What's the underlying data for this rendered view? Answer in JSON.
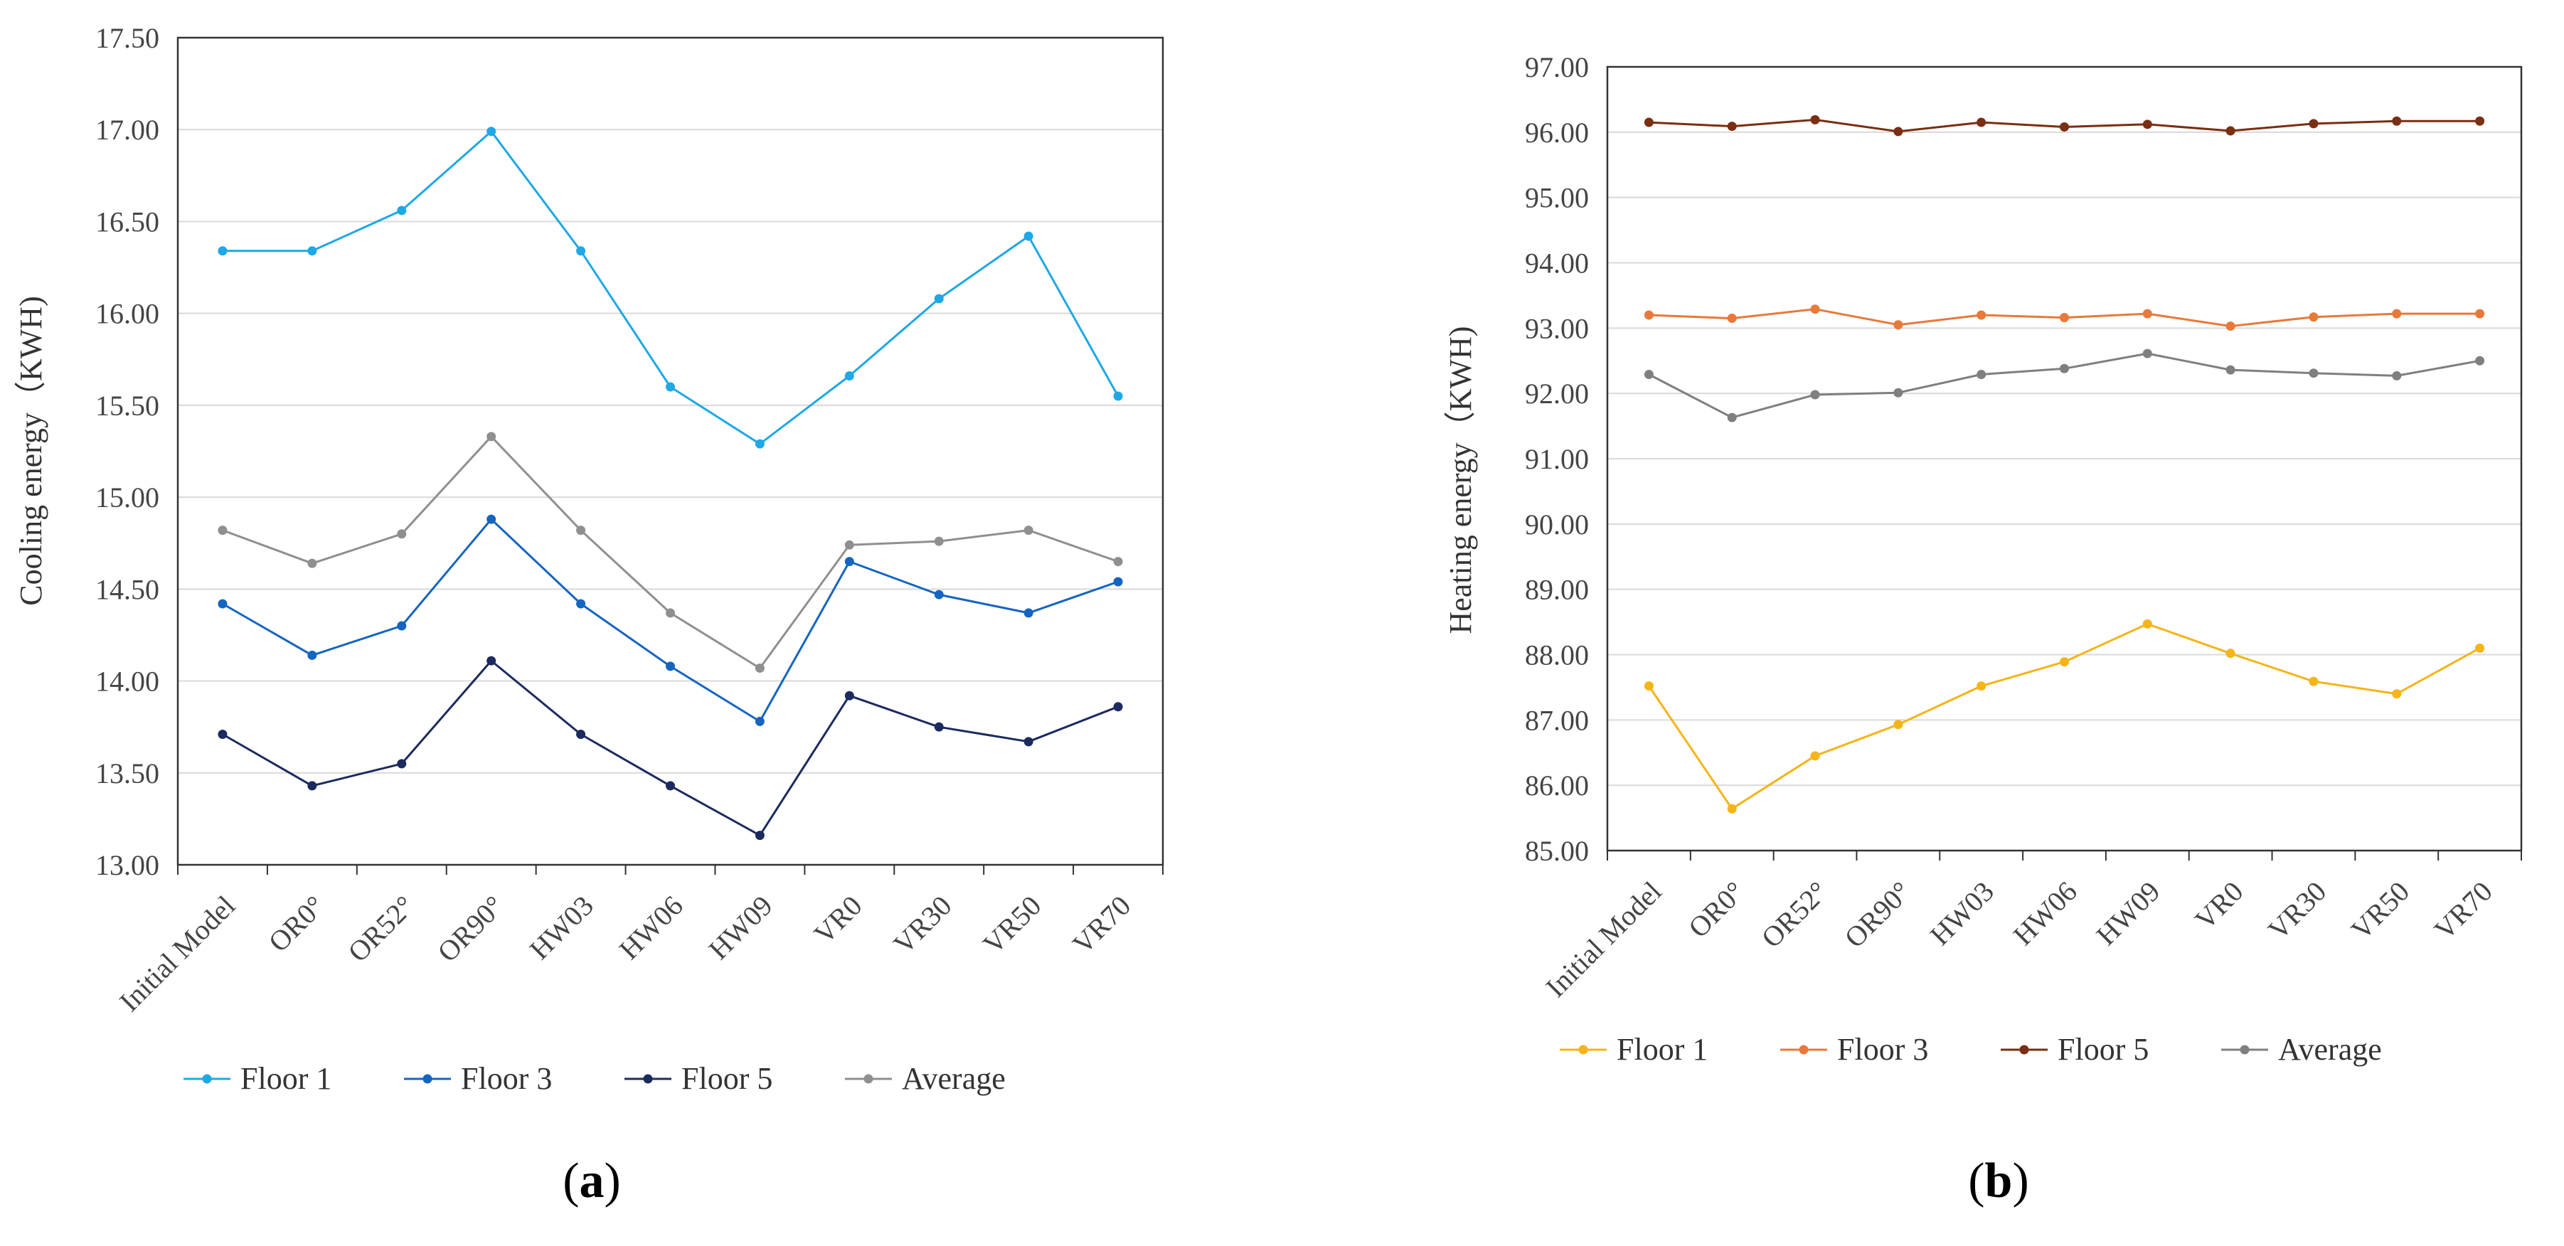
{
  "chart_data": [
    {
      "type": "line",
      "panel_label": "(a)",
      "panel_letter": "a",
      "ylabel": "Cooling energy（KWH)",
      "xlabel": "",
      "ylim": [
        13.0,
        17.5
      ],
      "yticks": [
        13.0,
        13.5,
        14.0,
        14.5,
        15.0,
        15.5,
        16.0,
        16.5,
        17.0,
        17.5
      ],
      "ytick_labels": [
        "13.00",
        "13.50",
        "14.00",
        "14.50",
        "15.00",
        "15.50",
        "16.00",
        "16.50",
        "17.00",
        "17.50"
      ],
      "grid": true,
      "legend": "bottom",
      "categories": [
        "Initial Model",
        "OR0°",
        "OR52°",
        "OR90°",
        "HW03",
        "HW06",
        "HW09",
        "VR0",
        "VR30",
        "VR50",
        "VR70"
      ],
      "series": [
        {
          "name": "Floor 1",
          "color": "#1ea8e6",
          "values": [
            16.34,
            16.34,
            16.56,
            16.99,
            16.34,
            15.6,
            15.29,
            15.66,
            16.08,
            16.42,
            15.55
          ]
        },
        {
          "name": "Floor 3",
          "color": "#1565c0",
          "values": [
            14.42,
            14.14,
            14.3,
            14.88,
            14.42,
            14.08,
            13.78,
            14.65,
            14.47,
            14.37,
            14.54
          ]
        },
        {
          "name": "Floor 5",
          "color": "#1c2b5e",
          "values": [
            13.71,
            13.43,
            13.55,
            14.11,
            13.71,
            13.43,
            13.16,
            13.92,
            13.75,
            13.67,
            13.86
          ]
        },
        {
          "name": "Average",
          "color": "#8f8f8f",
          "values": [
            14.82,
            14.64,
            14.8,
            15.33,
            14.82,
            14.37,
            14.07,
            14.74,
            14.76,
            14.82,
            14.65
          ]
        }
      ]
    },
    {
      "type": "line",
      "panel_label": "(b)",
      "panel_letter": "b",
      "ylabel": "Heating energy（KWH)",
      "xlabel": "",
      "ylim": [
        85.0,
        97.0
      ],
      "yticks": [
        85,
        86,
        87,
        88,
        89,
        90,
        91,
        92,
        93,
        94,
        95,
        96,
        97
      ],
      "ytick_labels": [
        "85.00",
        "86.00",
        "87.00",
        "88.00",
        "89.00",
        "90.00",
        "91.00",
        "92.00",
        "93.00",
        "94.00",
        "95.00",
        "96.00",
        "97.00"
      ],
      "grid": true,
      "legend": "bottom",
      "categories": [
        "Initial Model",
        "OR0°",
        "OR52°",
        "OR90°",
        "HW03",
        "HW06",
        "HW09",
        "VR0",
        "VR30",
        "VR50",
        "VR70"
      ],
      "series": [
        {
          "name": "Floor 1",
          "color": "#f5b417",
          "values": [
            87.52,
            85.64,
            86.45,
            86.93,
            87.52,
            87.89,
            88.47,
            88.02,
            87.59,
            87.4,
            88.1
          ]
        },
        {
          "name": "Floor 3",
          "color": "#e8793a",
          "values": [
            93.2,
            93.15,
            93.29,
            93.05,
            93.2,
            93.16,
            93.22,
            93.03,
            93.17,
            93.22,
            93.22
          ]
        },
        {
          "name": "Floor 5",
          "color": "#7a2e12",
          "values": [
            96.15,
            96.09,
            96.19,
            96.01,
            96.15,
            96.08,
            96.12,
            96.02,
            96.13,
            96.17,
            96.17
          ]
        },
        {
          "name": "Average",
          "color": "#7f7f7f",
          "values": [
            92.29,
            91.63,
            91.98,
            92.01,
            92.29,
            92.38,
            92.61,
            92.36,
            92.31,
            92.27,
            92.5
          ]
        }
      ]
    }
  ]
}
